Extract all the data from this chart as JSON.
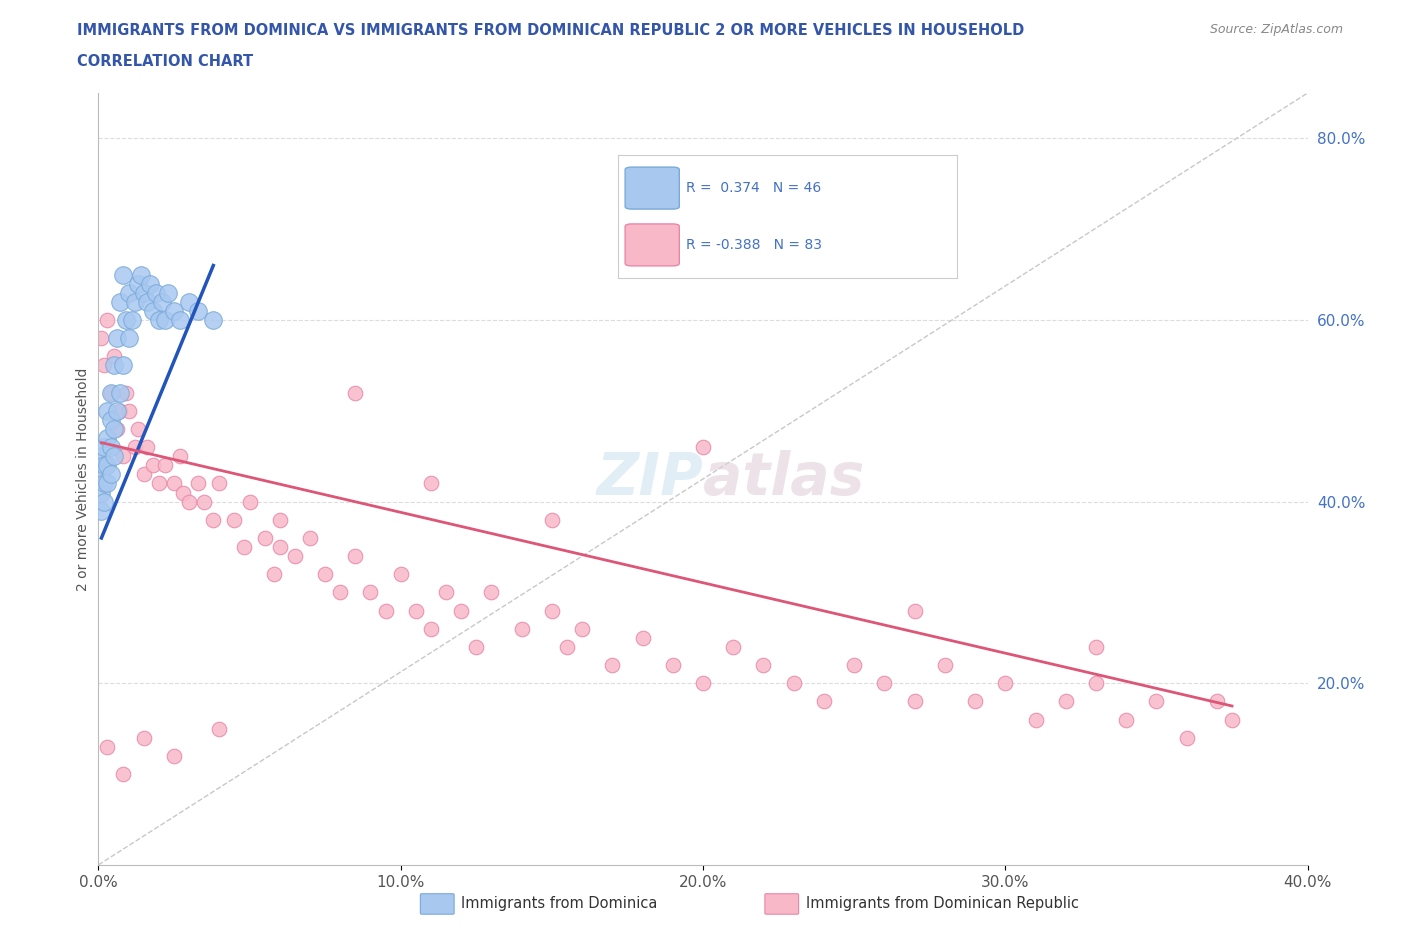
{
  "title_line1": "IMMIGRANTS FROM DOMINICA VS IMMIGRANTS FROM DOMINICAN REPUBLIC 2 OR MORE VEHICLES IN HOUSEHOLD",
  "title_line2": "CORRELATION CHART",
  "source_text": "Source: ZipAtlas.com",
  "ylabel": "2 or more Vehicles in Household",
  "xmin": 0.0,
  "xmax": 0.4,
  "ymin": 0.0,
  "ymax": 0.85,
  "blue_color": "#A8C8F0",
  "blue_edge_color": "#7AAAD8",
  "pink_color": "#F8B8C8",
  "pink_edge_color": "#E888A8",
  "blue_line_color": "#2255BB",
  "pink_line_color": "#DD5577",
  "ref_line_color": "#C8C8C8",
  "label1": "Immigrants from Dominica",
  "label2": "Immigrants from Dominican Republic",
  "title_color": "#3355AA",
  "right_tick_color": "#4472C4",
  "source_color": "#888888",
  "grid_color": "#DDDDDD",
  "watermark": "ZIPatlas",
  "fig_width": 14.06,
  "fig_height": 9.3,
  "background_color": "#FFFFFF",
  "blue_x": [
    0.001,
    0.001,
    0.001,
    0.001,
    0.002,
    0.002,
    0.002,
    0.002,
    0.003,
    0.003,
    0.003,
    0.003,
    0.004,
    0.004,
    0.004,
    0.004,
    0.005,
    0.005,
    0.005,
    0.006,
    0.006,
    0.007,
    0.007,
    0.008,
    0.008,
    0.009,
    0.01,
    0.01,
    0.011,
    0.012,
    0.013,
    0.014,
    0.015,
    0.016,
    0.017,
    0.018,
    0.019,
    0.02,
    0.021,
    0.022,
    0.023,
    0.025,
    0.027,
    0.03,
    0.033,
    0.038
  ],
  "blue_y": [
    0.39,
    0.41,
    0.43,
    0.45,
    0.4,
    0.42,
    0.44,
    0.46,
    0.42,
    0.44,
    0.47,
    0.5,
    0.43,
    0.46,
    0.49,
    0.52,
    0.45,
    0.48,
    0.55,
    0.5,
    0.58,
    0.52,
    0.62,
    0.55,
    0.65,
    0.6,
    0.58,
    0.63,
    0.6,
    0.62,
    0.64,
    0.65,
    0.63,
    0.62,
    0.64,
    0.61,
    0.63,
    0.6,
    0.62,
    0.6,
    0.63,
    0.61,
    0.6,
    0.62,
    0.61,
    0.6
  ],
  "pink_x": [
    0.001,
    0.002,
    0.003,
    0.004,
    0.005,
    0.006,
    0.007,
    0.008,
    0.009,
    0.01,
    0.012,
    0.013,
    0.015,
    0.016,
    0.018,
    0.02,
    0.022,
    0.025,
    0.027,
    0.028,
    0.03,
    0.033,
    0.035,
    0.038,
    0.04,
    0.045,
    0.048,
    0.05,
    0.055,
    0.058,
    0.06,
    0.065,
    0.07,
    0.075,
    0.08,
    0.085,
    0.09,
    0.095,
    0.1,
    0.105,
    0.11,
    0.115,
    0.12,
    0.125,
    0.13,
    0.14,
    0.15,
    0.155,
    0.16,
    0.17,
    0.18,
    0.19,
    0.2,
    0.21,
    0.22,
    0.23,
    0.24,
    0.25,
    0.26,
    0.27,
    0.28,
    0.29,
    0.3,
    0.31,
    0.32,
    0.33,
    0.34,
    0.35,
    0.36,
    0.37,
    0.375,
    0.003,
    0.008,
    0.015,
    0.025,
    0.04,
    0.06,
    0.085,
    0.11,
    0.15,
    0.2,
    0.27,
    0.33
  ],
  "pink_y": [
    0.58,
    0.55,
    0.6,
    0.52,
    0.56,
    0.48,
    0.5,
    0.45,
    0.52,
    0.5,
    0.46,
    0.48,
    0.43,
    0.46,
    0.44,
    0.42,
    0.44,
    0.42,
    0.45,
    0.41,
    0.4,
    0.42,
    0.4,
    0.38,
    0.42,
    0.38,
    0.35,
    0.4,
    0.36,
    0.32,
    0.38,
    0.34,
    0.36,
    0.32,
    0.3,
    0.34,
    0.3,
    0.28,
    0.32,
    0.28,
    0.26,
    0.3,
    0.28,
    0.24,
    0.3,
    0.26,
    0.28,
    0.24,
    0.26,
    0.22,
    0.25,
    0.22,
    0.2,
    0.24,
    0.22,
    0.2,
    0.18,
    0.22,
    0.2,
    0.18,
    0.22,
    0.18,
    0.2,
    0.16,
    0.18,
    0.2,
    0.16,
    0.18,
    0.14,
    0.18,
    0.16,
    0.13,
    0.1,
    0.14,
    0.12,
    0.15,
    0.35,
    0.52,
    0.42,
    0.38,
    0.46,
    0.28,
    0.24
  ],
  "blue_line_x": [
    0.001,
    0.038
  ],
  "blue_line_y": [
    0.36,
    0.66
  ],
  "pink_line_x": [
    0.001,
    0.375
  ],
  "pink_line_y": [
    0.465,
    0.175
  ],
  "marker_size_blue": 160,
  "marker_size_pink": 110
}
